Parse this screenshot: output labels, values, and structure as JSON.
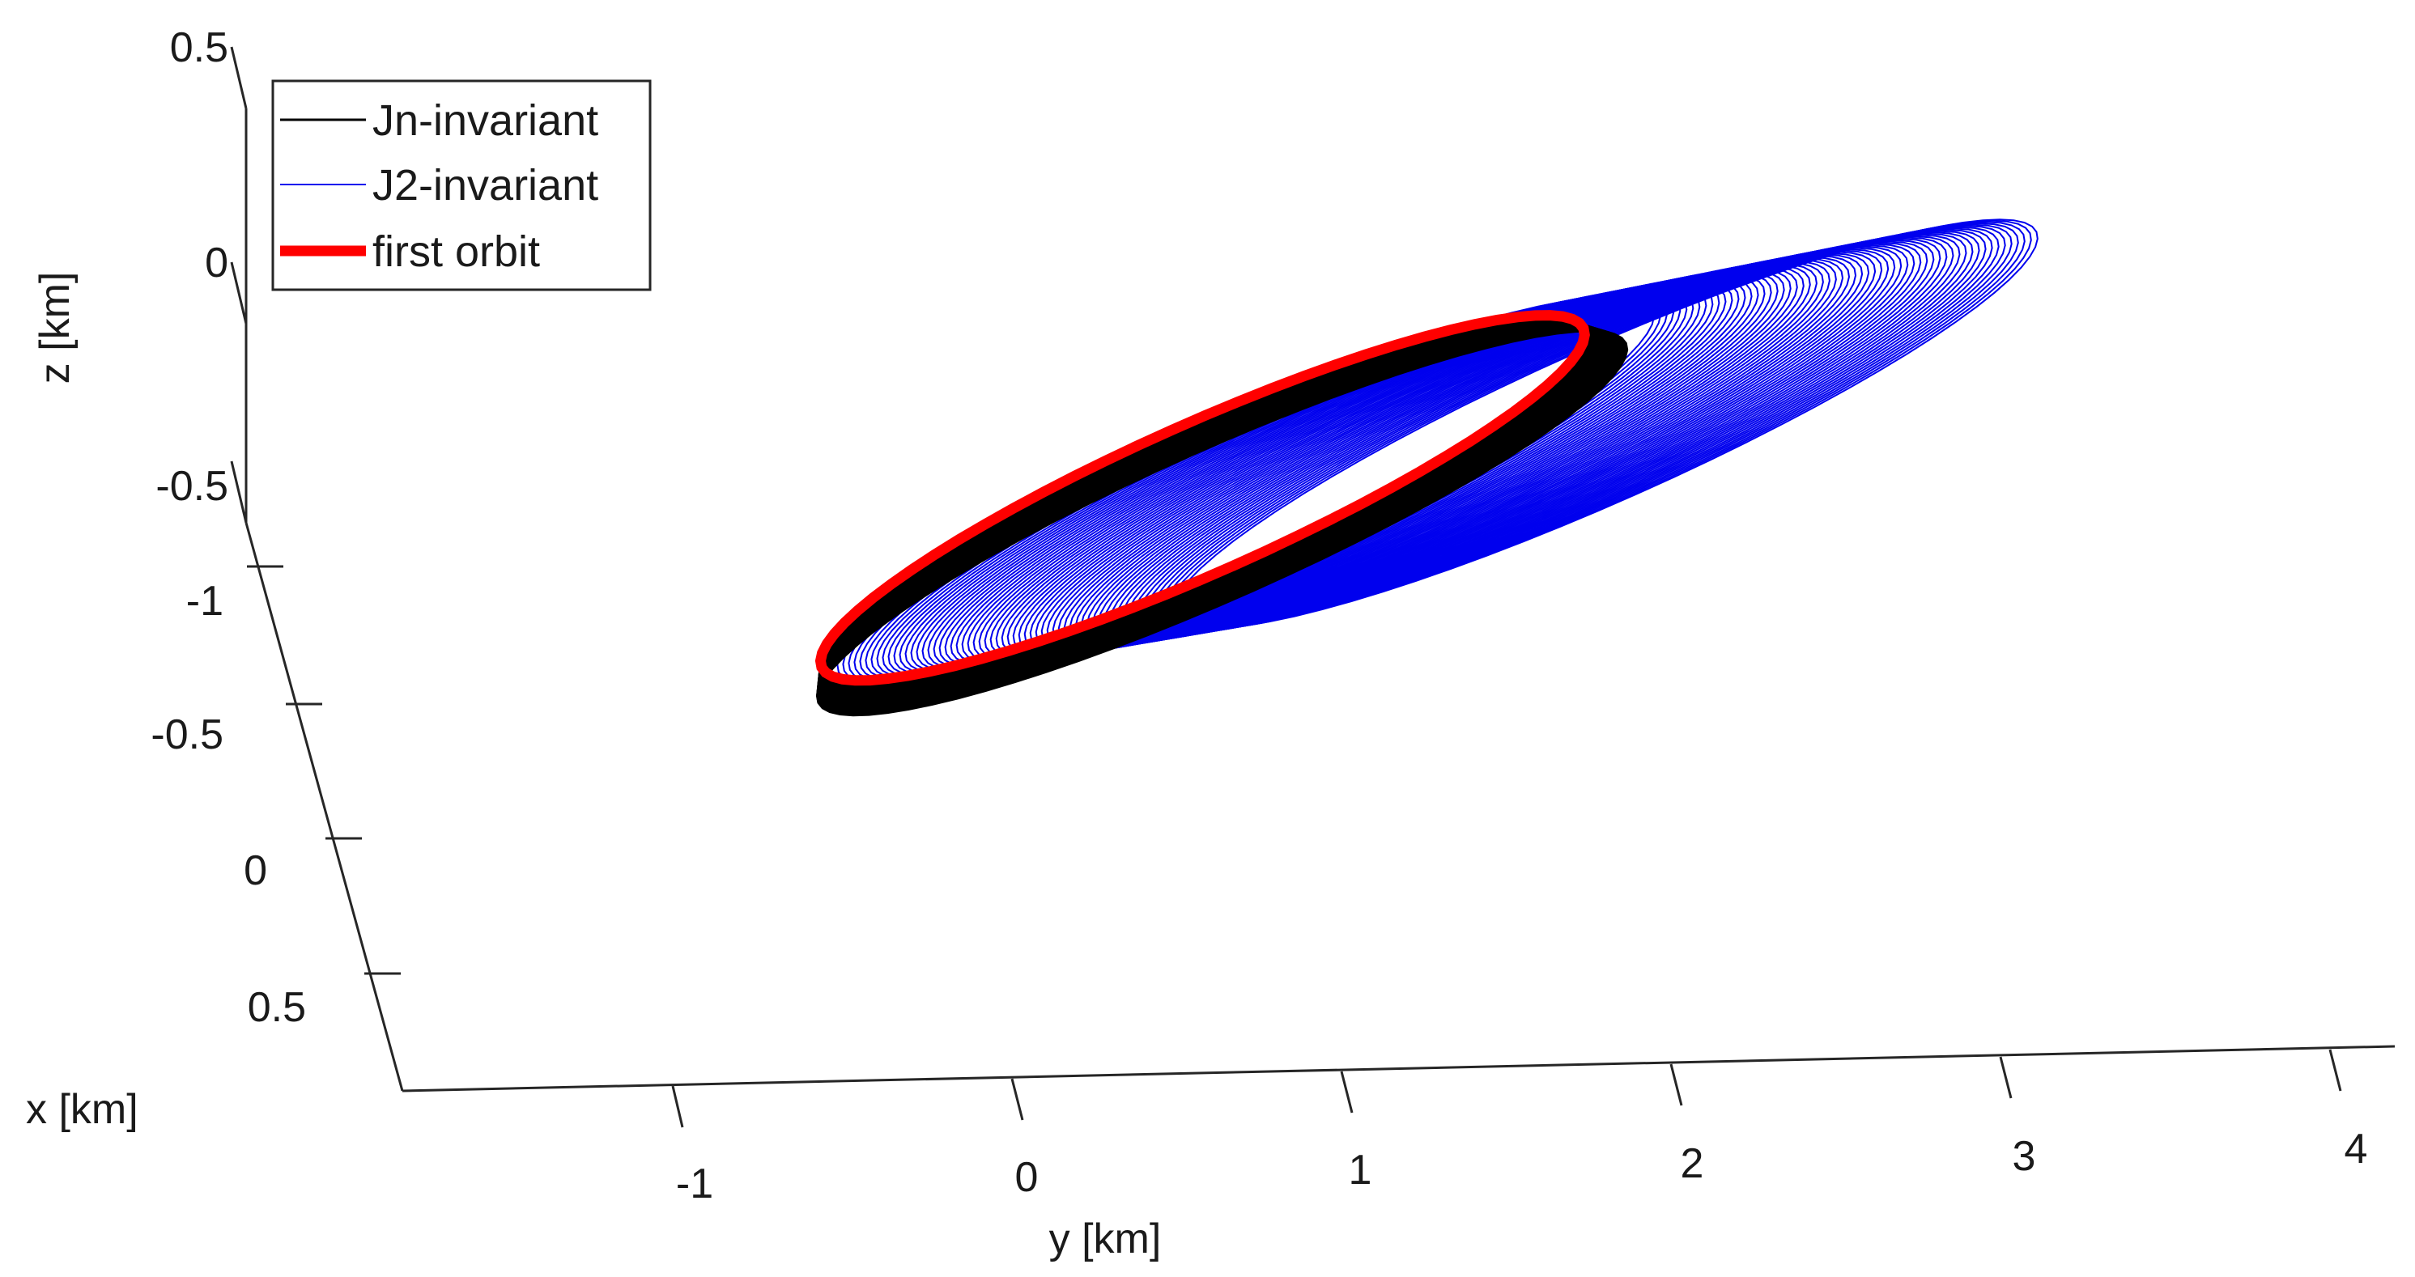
{
  "chart_data": {
    "type": "line",
    "subtype": "3d-orbit",
    "title": "",
    "xlabel": "x [km]",
    "ylabel": "y [km]",
    "zlabel": "z [km]",
    "x_ticks": [
      "-1",
      "-0.5",
      "0",
      "0.5"
    ],
    "y_ticks": [
      "-1",
      "0",
      "1",
      "2",
      "3",
      "4"
    ],
    "z_ticks": [
      "0.5",
      "0",
      "-0.5"
    ],
    "xlim": [
      -1,
      0.5
    ],
    "ylim": [
      -1.6,
      4.3
    ],
    "zlim": [
      -0.5,
      0.5
    ],
    "grid": false,
    "legend_position": "top-left",
    "series": [
      {
        "name": "Jn-invariant",
        "color": "#000000",
        "style": "thin",
        "center_y": 0.6,
        "semi_axis_y_km": 1.45,
        "y_drift_km": 0.05,
        "revolutions": 60
      },
      {
        "name": "J2-invariant",
        "color": "#0000ee",
        "style": "thin",
        "center_y": 1.2,
        "semi_axis_y_km": 1.55,
        "y_drift_km": 0.8,
        "revolutions": 60
      },
      {
        "name": "first orbit",
        "color": "#ff0000",
        "style": "thick",
        "center_y": 0.55,
        "semi_axis_y_km": 1.45,
        "y_drift_km": 0,
        "revolutions": 1
      }
    ]
  }
}
